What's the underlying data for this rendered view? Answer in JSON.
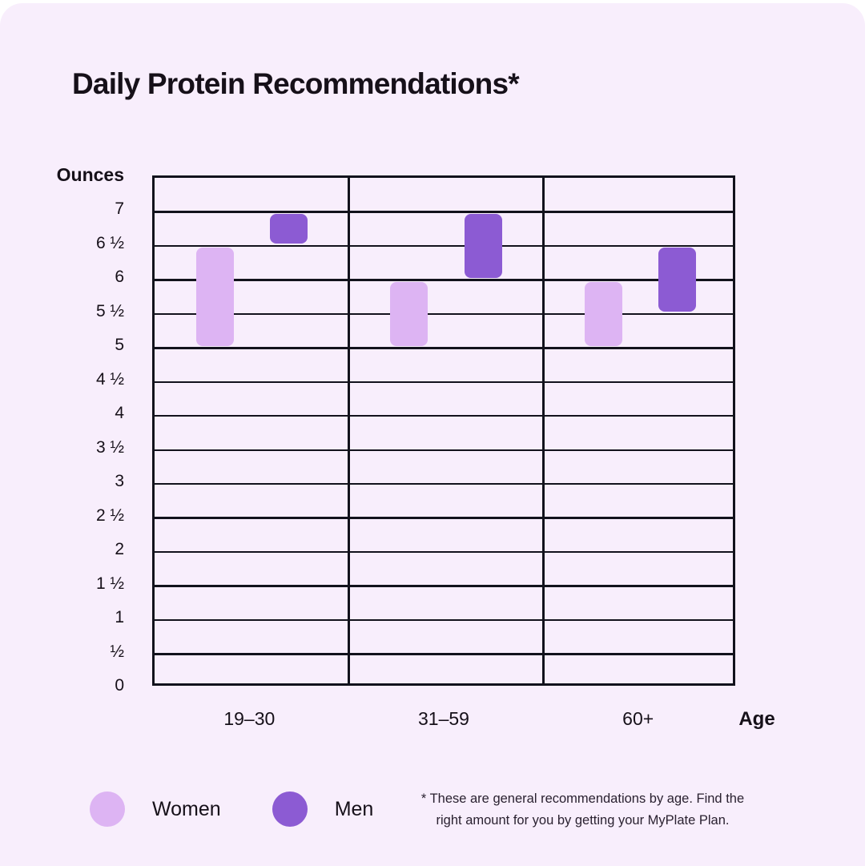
{
  "title": "Daily Protein Recommendations*",
  "y_axis_title": "Ounces",
  "x_axis_title": "Age",
  "legend": [
    {
      "label": "Women",
      "color": "#ddb4f3"
    },
    {
      "label": "Men",
      "color": "#8c5bd3"
    }
  ],
  "footnote": {
    "line1": "* These are general recommendations by age. Find the",
    "line2": "right amount for you by getting your MyPlate Plan."
  },
  "colors": {
    "background": "#f8eefc",
    "grid_line": "#12121c",
    "text": "#161019",
    "women": "#ddb4f3",
    "men": "#8c5bd3"
  },
  "chart_data": {
    "type": "bar",
    "subtype": "floating-range-bars",
    "title": "Daily Protein Recommendations*",
    "xlabel": "Age",
    "ylabel": "Ounces",
    "categories": [
      "19–30",
      "31–59",
      "60+"
    ],
    "ylim": [
      0,
      7.5
    ],
    "ytick_step": 0.5,
    "ytick_labels": [
      "0",
      "½",
      "1",
      "1 ½",
      "2",
      "2 ½",
      "3",
      "3 ½",
      "4",
      "4 ½",
      "5",
      "5 ½",
      "6",
      "6 ½",
      "7"
    ],
    "grid": true,
    "legend_position": "bottom-left",
    "series": [
      {
        "name": "Women",
        "color": "#ddb4f3",
        "ranges": [
          [
            5,
            6.5
          ],
          [
            5,
            6
          ],
          [
            5,
            6
          ]
        ]
      },
      {
        "name": "Men",
        "color": "#8c5bd3",
        "ranges": [
          [
            6.5,
            7
          ],
          [
            6,
            7
          ],
          [
            5.5,
            6.5
          ]
        ]
      }
    ]
  }
}
